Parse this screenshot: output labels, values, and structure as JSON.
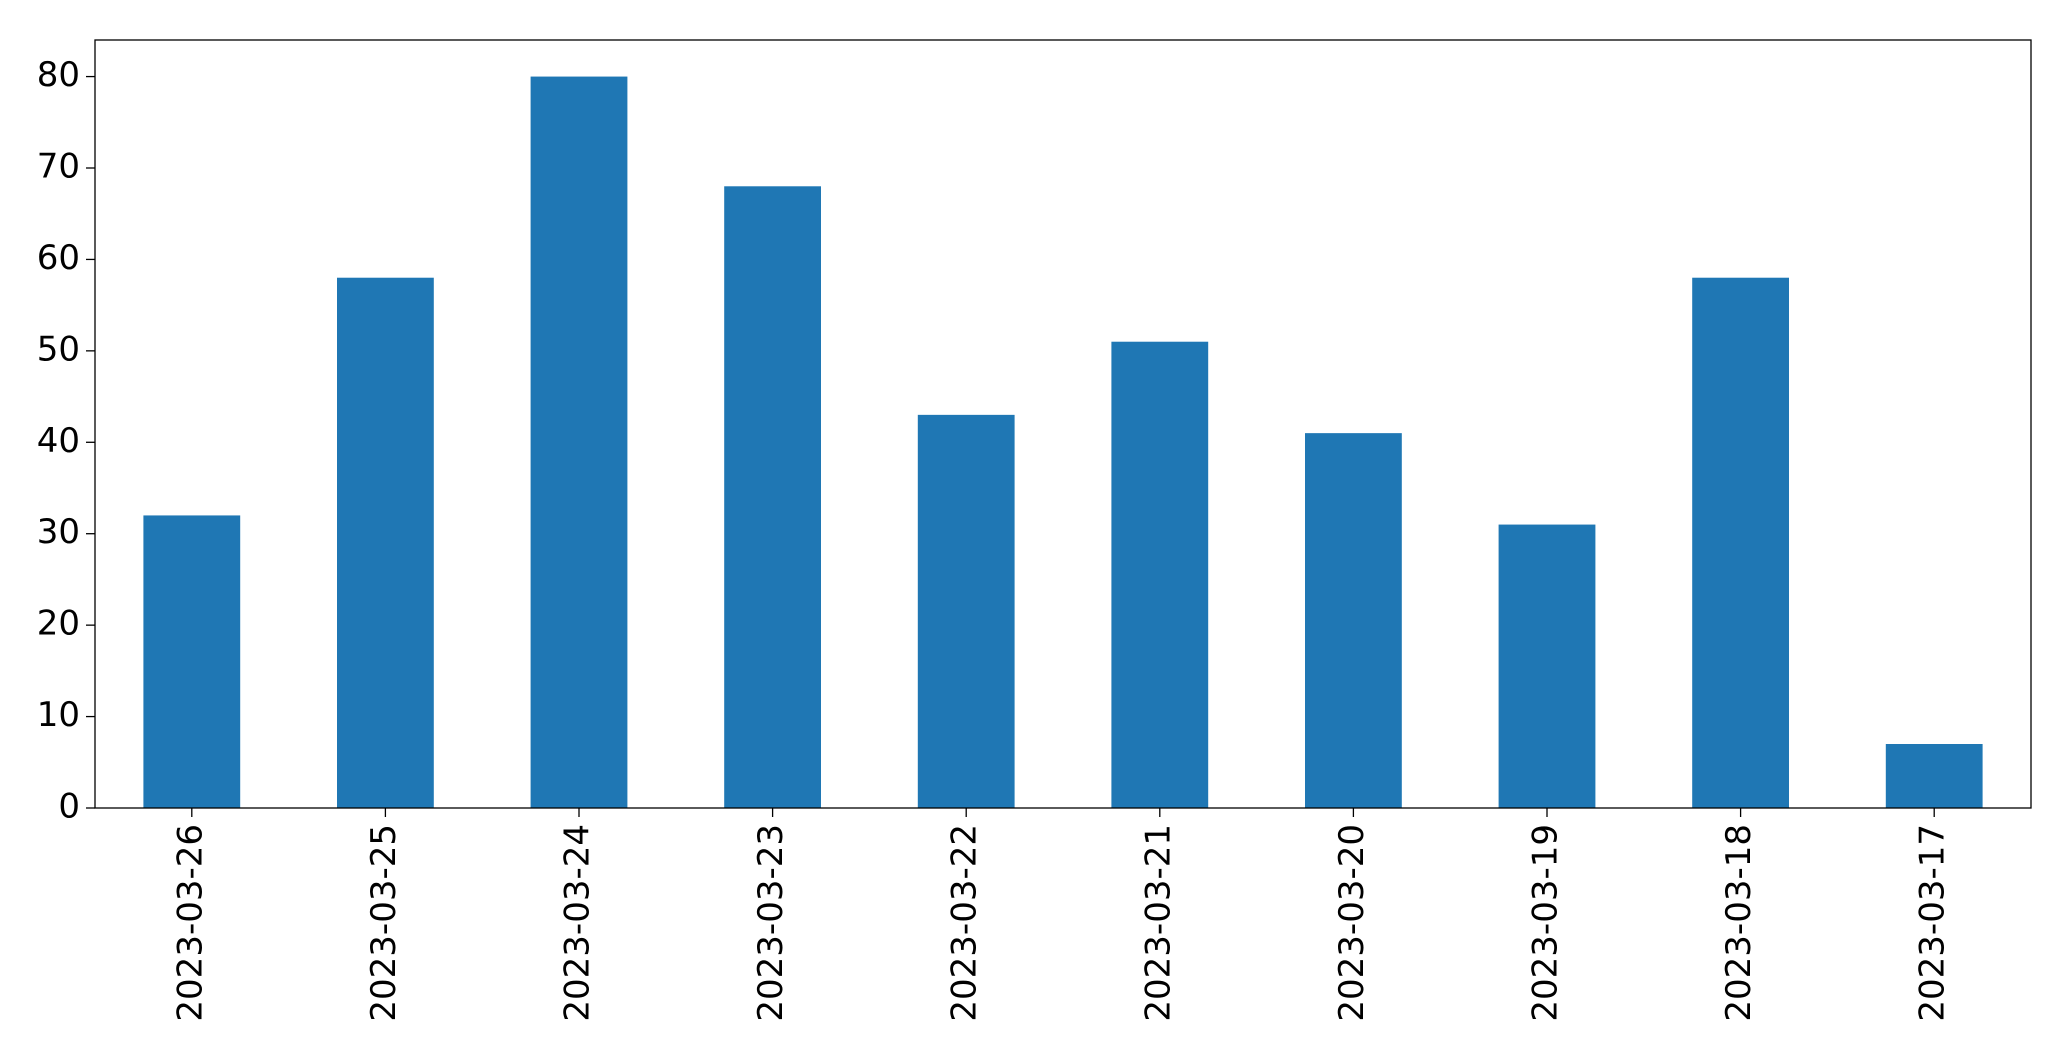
{
  "chart_data": {
    "type": "bar",
    "categories": [
      "2023-03-26",
      "2023-03-25",
      "2023-03-24",
      "2023-03-23",
      "2023-03-22",
      "2023-03-21",
      "2023-03-20",
      "2023-03-19",
      "2023-03-18",
      "2023-03-17"
    ],
    "values": [
      32,
      58,
      80,
      68,
      43,
      51,
      41,
      31,
      58,
      7
    ],
    "color": "#1f77b4",
    "ylim": [
      0,
      84
    ],
    "yticks": [
      0,
      10,
      20,
      30,
      40,
      50,
      60,
      70,
      80
    ],
    "grid": false
  }
}
